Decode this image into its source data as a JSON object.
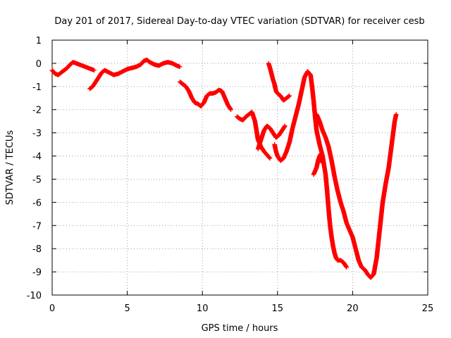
{
  "chart_data": {
    "type": "scatter",
    "title": "Day 201 of 2017, Sidereal Day-to-day VTEC variation (SDTVAR) for receiver cesb",
    "xlabel": "GPS time / hours",
    "ylabel": "SDTVAR / TECUs",
    "xlim": [
      0,
      25
    ],
    "ylim": [
      -10,
      1
    ],
    "x_ticks": [
      "0",
      "5",
      "10",
      "15",
      "20",
      "25"
    ],
    "y_ticks": [
      "1",
      "0",
      "-1",
      "-2",
      "-3",
      "-4",
      "-5",
      "-6",
      "-7",
      "-8",
      "-9",
      "-10"
    ],
    "grid": true,
    "marker": "+",
    "color": "#ff0000",
    "segments": [
      [
        [
          0.0,
          -0.3
        ],
        [
          0.2,
          -0.45
        ],
        [
          0.4,
          -0.5
        ],
        [
          0.6,
          -0.4
        ],
        [
          0.8,
          -0.3
        ],
        [
          1.0,
          -0.2
        ],
        [
          1.2,
          -0.05
        ],
        [
          1.4,
          0.05
        ],
        [
          1.6,
          0.0
        ],
        [
          1.8,
          -0.05
        ],
        [
          2.0,
          -0.1
        ],
        [
          2.2,
          -0.15
        ],
        [
          2.4,
          -0.2
        ],
        [
          2.6,
          -0.25
        ],
        [
          2.8,
          -0.3
        ]
      ],
      [
        [
          2.5,
          -1.1
        ],
        [
          2.7,
          -1.0
        ],
        [
          2.9,
          -0.8
        ],
        [
          3.1,
          -0.6
        ],
        [
          3.3,
          -0.4
        ],
        [
          3.5,
          -0.3
        ],
        [
          3.8,
          -0.4
        ],
        [
          4.1,
          -0.5
        ],
        [
          4.4,
          -0.45
        ],
        [
          4.7,
          -0.35
        ],
        [
          5.0,
          -0.25
        ],
        [
          5.3,
          -0.2
        ],
        [
          5.6,
          -0.15
        ],
        [
          5.9,
          -0.05
        ],
        [
          6.1,
          0.1
        ],
        [
          6.3,
          0.15
        ],
        [
          6.5,
          0.05
        ],
        [
          6.8,
          -0.05
        ],
        [
          7.1,
          -0.1
        ],
        [
          7.4,
          0.0
        ],
        [
          7.7,
          0.05
        ],
        [
          8.0,
          0.0
        ],
        [
          8.3,
          -0.1
        ],
        [
          8.5,
          -0.15
        ]
      ],
      [
        [
          8.5,
          -0.8
        ],
        [
          8.7,
          -0.9
        ],
        [
          8.9,
          -1.0
        ],
        [
          9.1,
          -1.2
        ],
        [
          9.3,
          -1.5
        ],
        [
          9.5,
          -1.7
        ],
        [
          9.7,
          -1.75
        ],
        [
          9.9,
          -1.85
        ],
        [
          10.1,
          -1.7
        ],
        [
          10.3,
          -1.4
        ],
        [
          10.5,
          -1.3
        ],
        [
          10.7,
          -1.3
        ],
        [
          10.9,
          -1.25
        ],
        [
          11.1,
          -1.15
        ],
        [
          11.3,
          -1.2
        ],
        [
          11.5,
          -1.5
        ],
        [
          11.7,
          -1.8
        ],
        [
          11.9,
          -2.0
        ]
      ],
      [
        [
          12.3,
          -2.3
        ],
        [
          12.5,
          -2.4
        ],
        [
          12.7,
          -2.45
        ],
        [
          12.9,
          -2.3
        ],
        [
          13.1,
          -2.2
        ],
        [
          13.3,
          -2.1
        ],
        [
          13.5,
          -2.5
        ],
        [
          13.7,
          -3.3
        ],
        [
          13.9,
          -3.6
        ],
        [
          14.1,
          -3.8
        ],
        [
          14.3,
          -3.95
        ],
        [
          14.5,
          -4.1
        ]
      ],
      [
        [
          13.7,
          -3.7
        ],
        [
          13.9,
          -3.3
        ],
        [
          14.1,
          -2.9
        ],
        [
          14.3,
          -2.7
        ],
        [
          14.5,
          -2.8
        ],
        [
          14.7,
          -3.0
        ],
        [
          14.9,
          -3.2
        ],
        [
          15.1,
          -3.1
        ],
        [
          15.3,
          -2.9
        ],
        [
          15.5,
          -2.7
        ]
      ],
      [
        [
          14.4,
          0.0
        ],
        [
          14.5,
          -0.2
        ],
        [
          14.6,
          -0.45
        ],
        [
          14.7,
          -0.7
        ],
        [
          14.8,
          -0.9
        ],
        [
          14.9,
          -1.2
        ],
        [
          15.0,
          -1.3
        ],
        [
          15.2,
          -1.4
        ],
        [
          15.4,
          -1.6
        ],
        [
          15.6,
          -1.5
        ],
        [
          15.8,
          -1.4
        ]
      ],
      [
        [
          14.8,
          -3.5
        ],
        [
          14.9,
          -3.8
        ],
        [
          15.0,
          -4.0
        ],
        [
          15.2,
          -4.2
        ],
        [
          15.4,
          -4.1
        ],
        [
          15.6,
          -3.8
        ],
        [
          15.8,
          -3.4
        ],
        [
          16.0,
          -2.8
        ],
        [
          16.2,
          -2.3
        ],
        [
          16.4,
          -1.8
        ],
        [
          16.6,
          -1.2
        ],
        [
          16.8,
          -0.6
        ],
        [
          17.0,
          -0.35
        ],
        [
          17.2,
          -0.5
        ],
        [
          17.3,
          -1.0
        ],
        [
          17.4,
          -1.6
        ],
        [
          17.5,
          -2.3
        ],
        [
          17.6,
          -2.9
        ],
        [
          17.8,
          -3.5
        ],
        [
          18.0,
          -4.0
        ],
        [
          18.2,
          -4.8
        ],
        [
          18.3,
          -5.5
        ],
        [
          18.4,
          -6.3
        ],
        [
          18.5,
          -7.0
        ],
        [
          18.6,
          -7.5
        ],
        [
          18.7,
          -7.9
        ],
        [
          18.8,
          -8.2
        ],
        [
          18.9,
          -8.4
        ],
        [
          19.0,
          -8.5
        ],
        [
          19.2,
          -8.5
        ],
        [
          19.4,
          -8.6
        ],
        [
          19.6,
          -8.8
        ]
      ],
      [
        [
          17.4,
          -4.8
        ],
        [
          17.6,
          -4.5
        ],
        [
          17.7,
          -4.2
        ],
        [
          17.8,
          -4.0
        ],
        [
          17.9,
          -3.9
        ],
        [
          18.0,
          -4.3
        ]
      ],
      [
        [
          17.6,
          -2.2
        ],
        [
          17.8,
          -2.5
        ],
        [
          18.0,
          -2.9
        ],
        [
          18.2,
          -3.2
        ],
        [
          18.4,
          -3.6
        ],
        [
          18.6,
          -4.2
        ],
        [
          18.8,
          -4.9
        ],
        [
          19.0,
          -5.5
        ],
        [
          19.2,
          -6.0
        ],
        [
          19.4,
          -6.4
        ],
        [
          19.6,
          -6.9
        ],
        [
          19.8,
          -7.2
        ],
        [
          20.0,
          -7.5
        ],
        [
          20.2,
          -8.0
        ],
        [
          20.4,
          -8.5
        ],
        [
          20.6,
          -8.8
        ],
        [
          20.8,
          -8.9
        ],
        [
          21.0,
          -9.1
        ],
        [
          21.2,
          -9.25
        ],
        [
          21.4,
          -9.1
        ],
        [
          21.6,
          -8.4
        ],
        [
          21.8,
          -7.2
        ],
        [
          22.0,
          -6.0
        ],
        [
          22.2,
          -5.2
        ],
        [
          22.4,
          -4.5
        ],
        [
          22.6,
          -3.5
        ],
        [
          22.8,
          -2.5
        ],
        [
          22.9,
          -2.2
        ]
      ]
    ]
  }
}
